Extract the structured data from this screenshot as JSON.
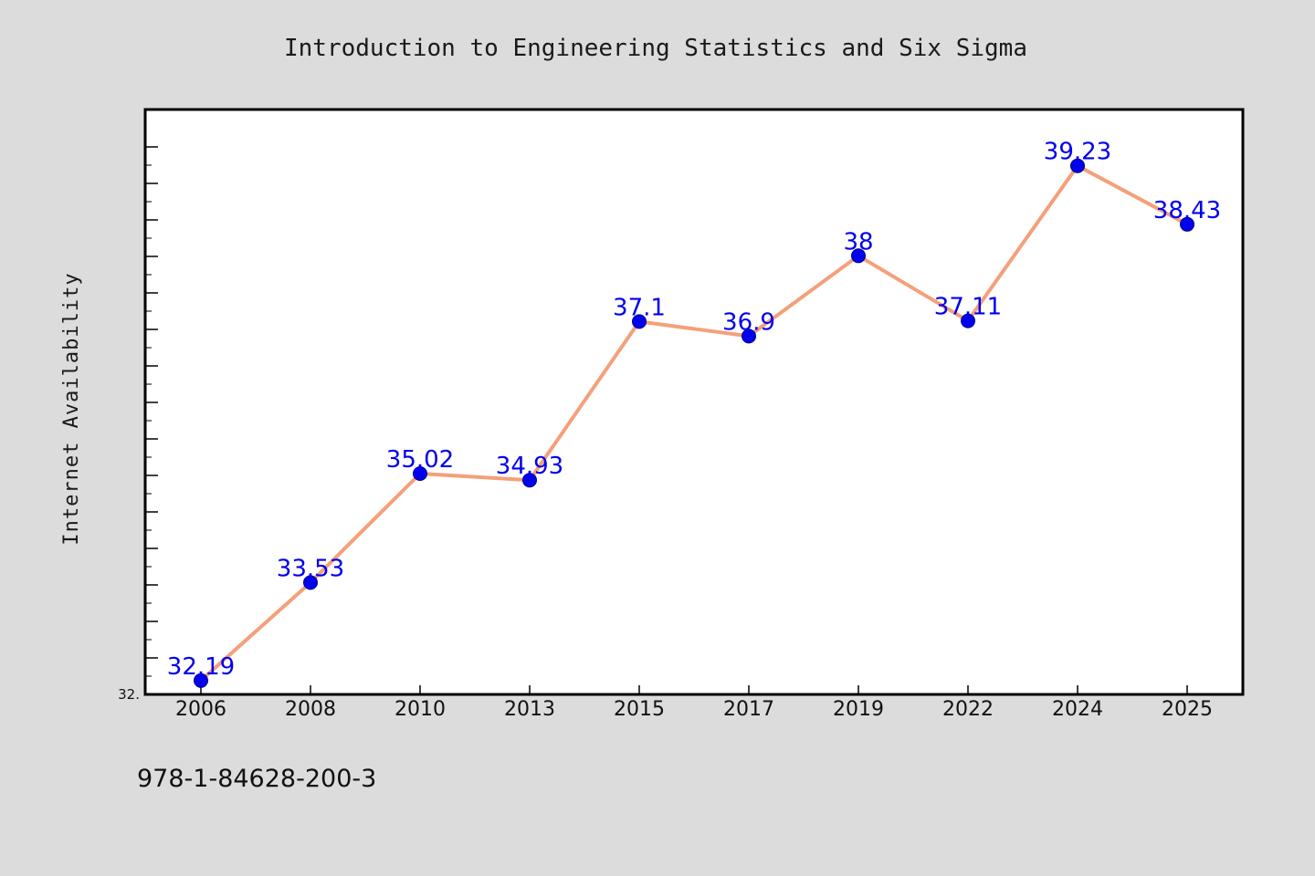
{
  "footer_text": "978-1-84628-200-3",
  "colors": {
    "background": "#dcdcdc",
    "plot_background": "#ffffff",
    "line": "#f4a07a",
    "marker": "#0000ee",
    "label": "#0000ee"
  },
  "chart_data": {
    "type": "line",
    "title": "Introduction to Engineering Statistics and Six Sigma",
    "xlabel": "",
    "ylabel": "Internet Availability",
    "categories": [
      "2006",
      "2008",
      "2010",
      "2013",
      "2015",
      "2017",
      "2019",
      "2022",
      "2024",
      "2025"
    ],
    "series": [
      {
        "values": [
          32.19,
          33.53,
          35.02,
          34.93,
          37.1,
          36.9,
          38,
          37.11,
          39.23,
          38.43
        ],
        "labels": [
          "32.19",
          "33.53",
          "35.02",
          "34.93",
          "37.1",
          "36.9",
          "38",
          "37.11",
          "39.23",
          "38.43"
        ]
      }
    ],
    "ylim": [
      32.0,
      40.0
    ],
    "ytick_labels": [
      "32."
    ],
    "grid": false,
    "legend": "none"
  }
}
